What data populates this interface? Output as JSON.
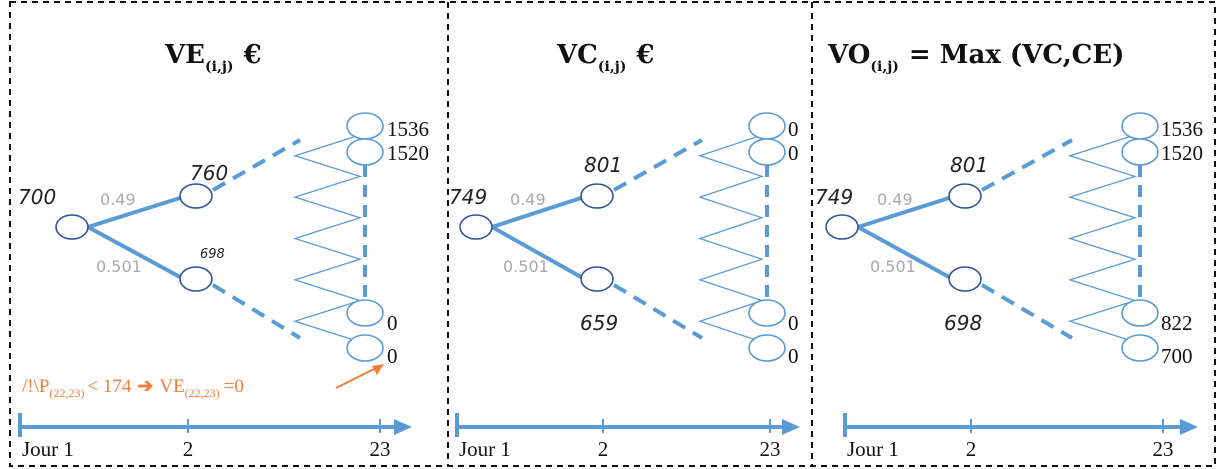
{
  "colors": {
    "line": "#5b9bd5",
    "node_stroke": "#2f5597",
    "probability": "#aaaaaa",
    "note": "#f07d3a",
    "separator": "#111111"
  },
  "panels": [
    {
      "title_main": "VE",
      "title_sub": "(i,j)",
      "title_suffix": "€",
      "root_value": "700",
      "upper_value": "760",
      "lower_value": "698",
      "prob_up": "0.49",
      "prob_down": "0.501",
      "leaf_top_1": "1536",
      "leaf_top_2": "1520",
      "leaf_bottom_1": "0",
      "leaf_bottom_2": "0",
      "axis_labels": [
        "Jour 1",
        "2",
        "23"
      ]
    },
    {
      "title_main": "VC",
      "title_sub": "(i,j)",
      "title_suffix": "€",
      "root_value": "749",
      "upper_value": "801",
      "lower_value": "659",
      "prob_up": "0.49",
      "prob_down": "0.501",
      "leaf_top_1": "0",
      "leaf_top_2": "0",
      "leaf_bottom_1": "0",
      "leaf_bottom_2": "0",
      "axis_labels": [
        "Jour 1",
        "2",
        "23"
      ]
    },
    {
      "title_main": "VO",
      "title_sub": "(i,j)",
      "title_suffix": "= Max (VC,CE)",
      "root_value": "749",
      "upper_value": "801",
      "lower_value": "698",
      "prob_up": "0.49",
      "prob_down": "0.501",
      "leaf_top_1": "1536",
      "leaf_top_2": "1520",
      "leaf_bottom_1": "822",
      "leaf_bottom_2": "700",
      "axis_labels": [
        "Jour 1",
        "2",
        "23"
      ]
    }
  ],
  "note": {
    "prefix": "/!\\P",
    "sub1": "(22,23)",
    "middle": "< 174",
    "arrow": "➔",
    "ve": "VE",
    "sub2": "(22,23)",
    "suffix": "=0"
  }
}
